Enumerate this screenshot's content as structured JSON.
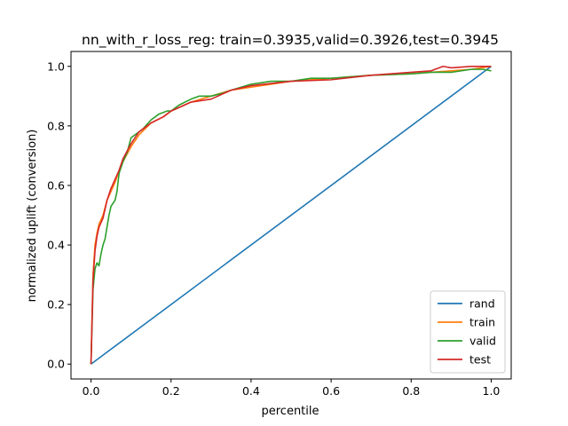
{
  "chart_data": {
    "type": "line",
    "title": "nn_with_r_loss_reg: train=0.3935,valid=0.3926,test=0.3945",
    "xlabel": "percentile",
    "ylabel": "normalized uplift (conversion)",
    "xlim": [
      -0.05,
      1.05
    ],
    "ylim": [
      -0.05,
      1.05
    ],
    "xticks": [
      0.0,
      0.2,
      0.4,
      0.6,
      0.8,
      1.0
    ],
    "xtick_labels": [
      "0.0",
      "0.2",
      "0.4",
      "0.6",
      "0.8",
      "1.0"
    ],
    "yticks": [
      0.0,
      0.2,
      0.4,
      0.6,
      0.8,
      1.0
    ],
    "ytick_labels": [
      "0.0",
      "0.2",
      "0.4",
      "0.6",
      "0.8",
      "1.0"
    ],
    "grid": false,
    "legend_position": "lower-right",
    "series": [
      {
        "name": "rand",
        "color": "#1f77b4",
        "x": [
          0.0,
          1.0
        ],
        "y": [
          0.0,
          1.0
        ]
      },
      {
        "name": "train",
        "color": "#ff7f0e",
        "x": [
          0.0,
          0.005,
          0.01,
          0.015,
          0.02,
          0.03,
          0.04,
          0.05,
          0.06,
          0.07,
          0.08,
          0.1,
          0.12,
          0.15,
          0.18,
          0.2,
          0.25,
          0.3,
          0.35,
          0.4,
          0.5,
          0.6,
          0.7,
          0.8,
          0.85,
          0.9,
          0.95,
          1.0
        ],
        "y": [
          0.0,
          0.3,
          0.4,
          0.44,
          0.47,
          0.5,
          0.55,
          0.58,
          0.61,
          0.65,
          0.68,
          0.73,
          0.77,
          0.81,
          0.83,
          0.85,
          0.88,
          0.9,
          0.92,
          0.93,
          0.95,
          0.96,
          0.97,
          0.975,
          0.98,
          0.985,
          0.99,
          1.0
        ]
      },
      {
        "name": "valid",
        "color": "#2ca02c",
        "x": [
          0.0,
          0.005,
          0.01,
          0.015,
          0.02,
          0.025,
          0.03,
          0.035,
          0.04,
          0.045,
          0.05,
          0.06,
          0.065,
          0.07,
          0.08,
          0.09,
          0.1,
          0.11,
          0.13,
          0.15,
          0.17,
          0.19,
          0.2,
          0.22,
          0.25,
          0.27,
          0.3,
          0.33,
          0.35,
          0.4,
          0.45,
          0.5,
          0.55,
          0.6,
          0.7,
          0.8,
          0.85,
          0.9,
          0.95,
          0.98,
          1.0
        ],
        "y": [
          0.0,
          0.25,
          0.32,
          0.34,
          0.33,
          0.37,
          0.4,
          0.42,
          0.46,
          0.5,
          0.53,
          0.55,
          0.58,
          0.64,
          0.68,
          0.71,
          0.76,
          0.77,
          0.79,
          0.82,
          0.84,
          0.85,
          0.85,
          0.87,
          0.89,
          0.9,
          0.9,
          0.91,
          0.92,
          0.94,
          0.95,
          0.95,
          0.96,
          0.96,
          0.97,
          0.975,
          0.98,
          0.98,
          0.99,
          0.99,
          0.985
        ]
      },
      {
        "name": "test",
        "color": "#d62728",
        "x": [
          0.0,
          0.005,
          0.01,
          0.015,
          0.02,
          0.03,
          0.04,
          0.05,
          0.06,
          0.07,
          0.08,
          0.1,
          0.12,
          0.15,
          0.18,
          0.2,
          0.25,
          0.3,
          0.35,
          0.4,
          0.5,
          0.6,
          0.7,
          0.8,
          0.85,
          0.88,
          0.9,
          0.95,
          1.0
        ],
        "y": [
          0.0,
          0.28,
          0.38,
          0.43,
          0.46,
          0.49,
          0.55,
          0.59,
          0.62,
          0.65,
          0.69,
          0.74,
          0.78,
          0.81,
          0.83,
          0.85,
          0.88,
          0.89,
          0.92,
          0.935,
          0.95,
          0.955,
          0.97,
          0.98,
          0.985,
          1.0,
          0.995,
          1.0,
          1.0
        ]
      }
    ]
  }
}
